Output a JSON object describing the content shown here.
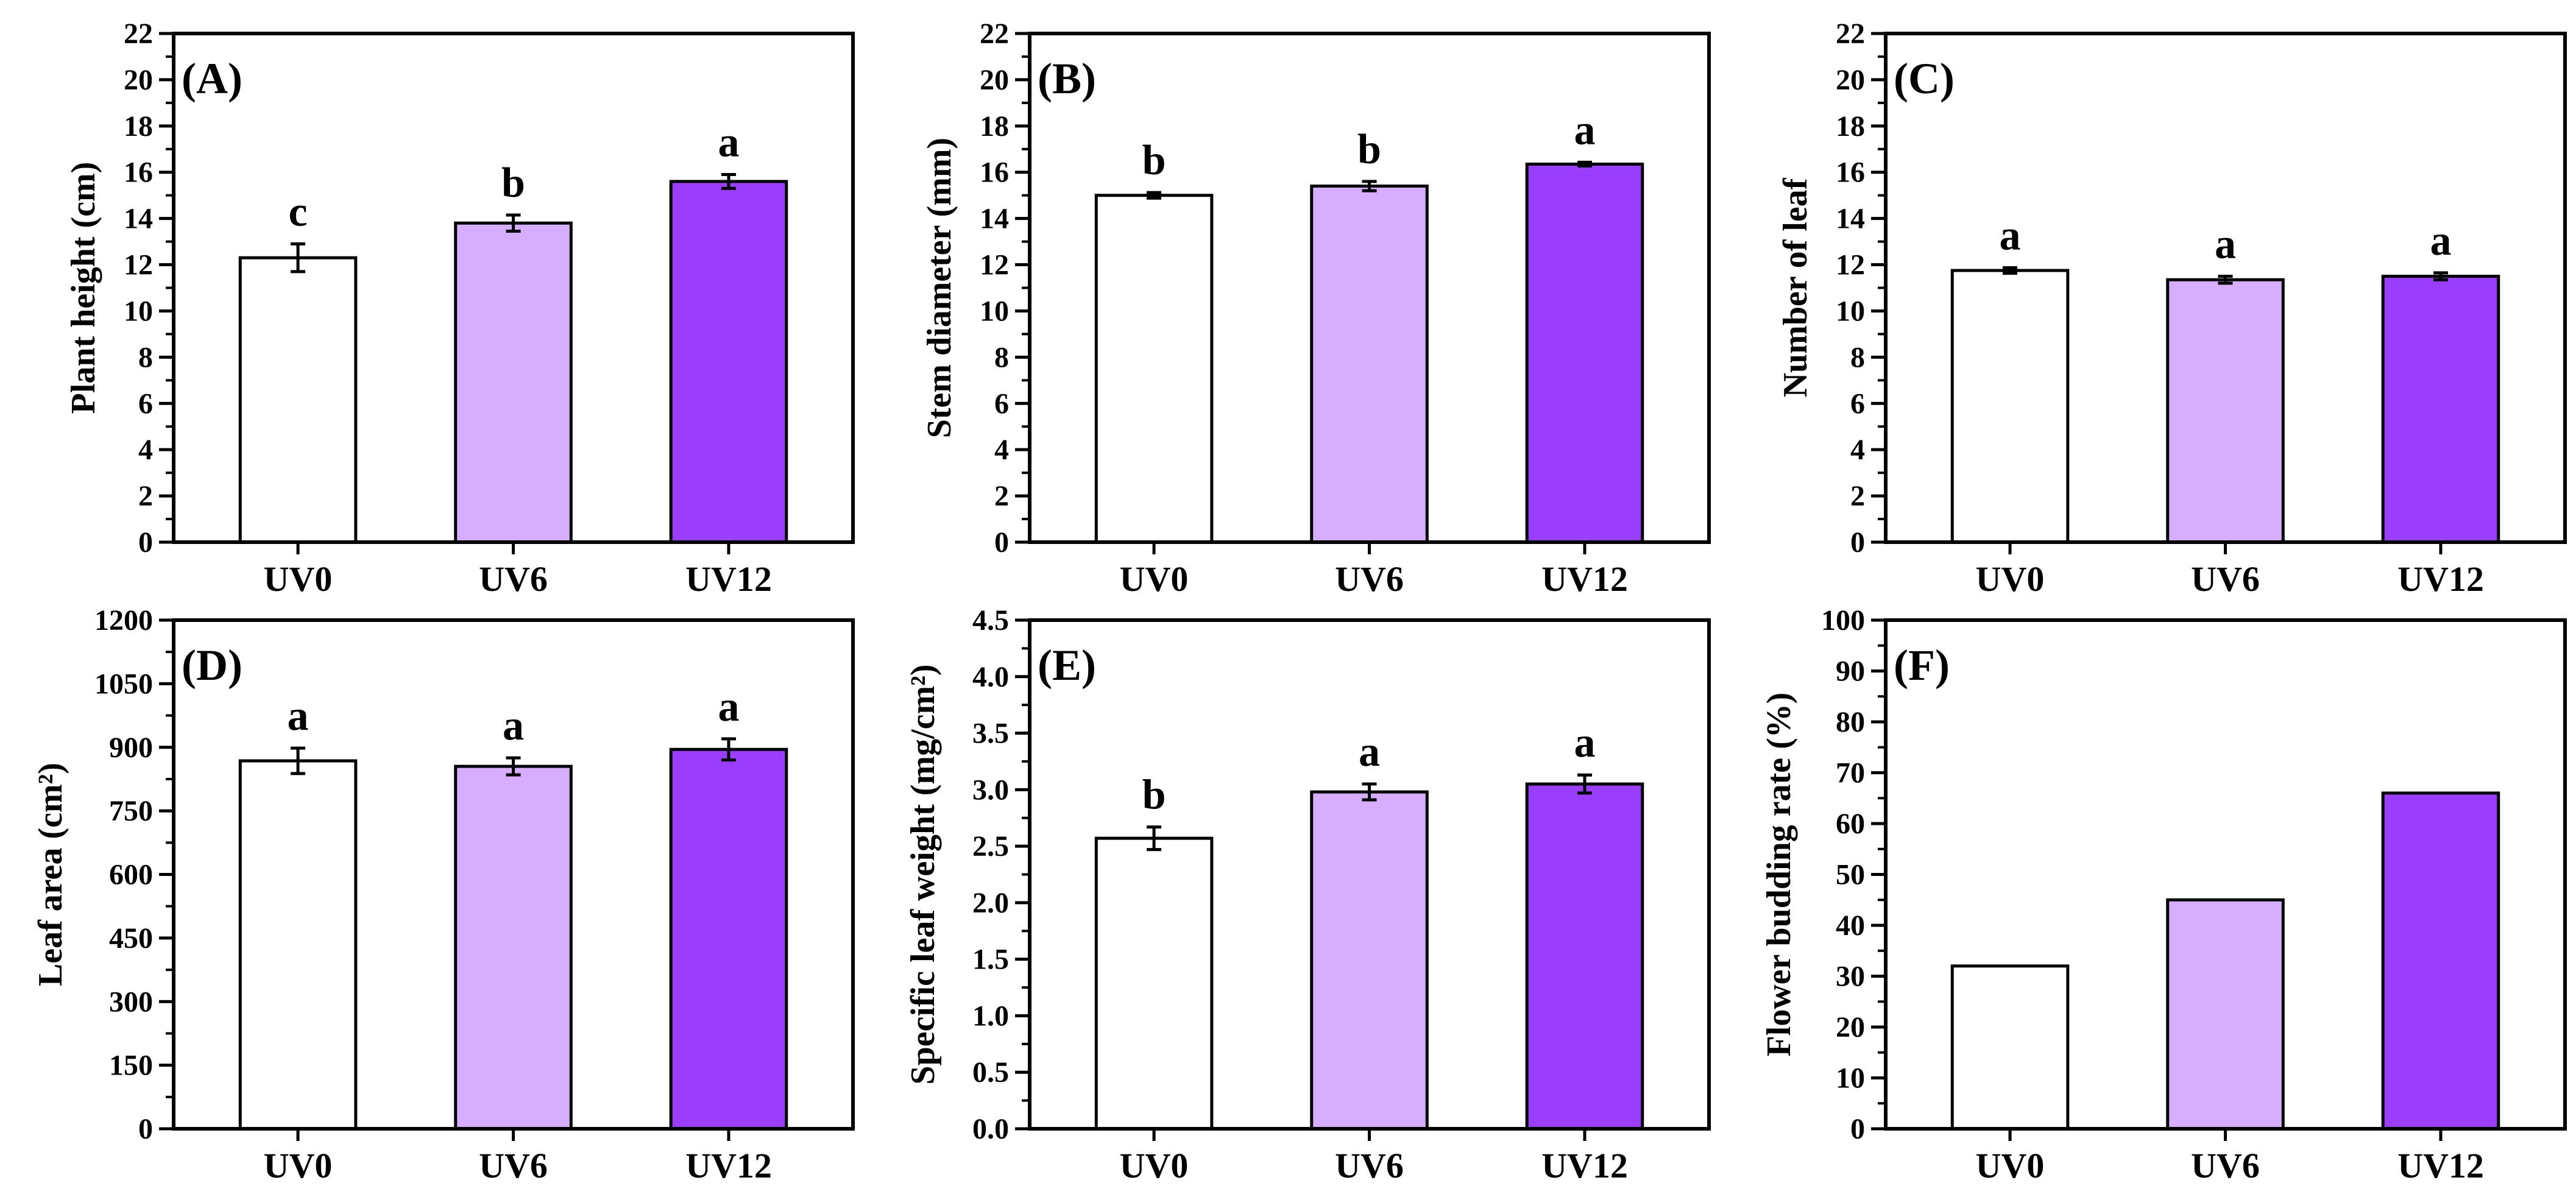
{
  "figure_title": "",
  "chart_data": [
    {
      "type": "bar",
      "panel": "(A)",
      "title": "",
      "xlabel": "",
      "ylabel": "Plant height (cm)",
      "categories": [
        "UV0",
        "UV6",
        "UV12"
      ],
      "values": [
        12.3,
        13.8,
        15.6
      ],
      "errors": [
        0.6,
        0.35,
        0.3
      ],
      "significance": [
        "c",
        "b",
        "a"
      ],
      "ylim": [
        0,
        22
      ],
      "yticks": [
        0,
        2,
        4,
        6,
        8,
        10,
        12,
        14,
        16,
        18,
        20,
        22
      ],
      "colors": [
        "#ffffff",
        "#d7aeff",
        "#9b3dfd"
      ]
    },
    {
      "type": "bar",
      "panel": "(B)",
      "title": "",
      "xlabel": "",
      "ylabel": "Stem diameter (mm)",
      "categories": [
        "UV0",
        "UV6",
        "UV12"
      ],
      "values": [
        15.0,
        15.4,
        16.35
      ],
      "errors": [
        0.12,
        0.2,
        0.08
      ],
      "significance": [
        "b",
        "b",
        "a"
      ],
      "ylim": [
        0,
        22
      ],
      "yticks": [
        0,
        2,
        4,
        6,
        8,
        10,
        12,
        14,
        16,
        18,
        20,
        22
      ],
      "colors": [
        "#ffffff",
        "#d7aeff",
        "#9b3dfd"
      ]
    },
    {
      "type": "bar",
      "panel": "(C)",
      "title": "",
      "xlabel": "",
      "ylabel": "Number of leaf",
      "categories": [
        "UV0",
        "UV6",
        "UV12"
      ],
      "values": [
        11.75,
        11.35,
        11.5
      ],
      "errors": [
        0.12,
        0.15,
        0.15
      ],
      "significance": [
        "a",
        "a",
        "a"
      ],
      "ylim": [
        0,
        22
      ],
      "yticks": [
        0,
        2,
        4,
        6,
        8,
        10,
        12,
        14,
        16,
        18,
        20,
        22
      ],
      "colors": [
        "#ffffff",
        "#d7aeff",
        "#9b3dfd"
      ]
    },
    {
      "type": "bar",
      "panel": "(D)",
      "title": "",
      "xlabel": "",
      "ylabel": "Leaf area (cm²)",
      "categories": [
        "UV0",
        "UV6",
        "UV12"
      ],
      "values": [
        868,
        855,
        895
      ],
      "errors": [
        30,
        20,
        25
      ],
      "significance": [
        "a",
        "a",
        "a"
      ],
      "ylim": [
        0,
        1200
      ],
      "yticks": [
        0,
        150,
        300,
        450,
        600,
        750,
        900,
        1050,
        1200
      ],
      "colors": [
        "#ffffff",
        "#d7aeff",
        "#9b3dfd"
      ]
    },
    {
      "type": "bar",
      "panel": "(E)",
      "title": "",
      "xlabel": "",
      "ylabel": "Specific leaf weight (mg/cm²)",
      "categories": [
        "UV0",
        "UV6",
        "UV12"
      ],
      "values": [
        2.57,
        2.98,
        3.05
      ],
      "errors": [
        0.1,
        0.07,
        0.08
      ],
      "significance": [
        "b",
        "a",
        "a"
      ],
      "ylim": [
        0,
        4.5
      ],
      "yticks": [
        "0.0",
        "0.5",
        "1.0",
        "1.5",
        "2.0",
        "2.5",
        "3.0",
        "3.5",
        "4.0",
        "4.5"
      ],
      "colors": [
        "#ffffff",
        "#d7aeff",
        "#9b3dfd"
      ]
    },
    {
      "type": "bar",
      "panel": "(F)",
      "title": "",
      "xlabel": "",
      "ylabel": "Flower budding rate (%)",
      "categories": [
        "UV0",
        "UV6",
        "UV12"
      ],
      "values": [
        32,
        45,
        66
      ],
      "errors": [
        0,
        0,
        0
      ],
      "significance": [
        "",
        "",
        ""
      ],
      "ylim": [
        0,
        100
      ],
      "yticks": [
        0,
        10,
        20,
        30,
        40,
        50,
        60,
        70,
        80,
        90,
        100
      ],
      "colors": [
        "#ffffff",
        "#d7aeff",
        "#9b3dfd"
      ]
    }
  ]
}
